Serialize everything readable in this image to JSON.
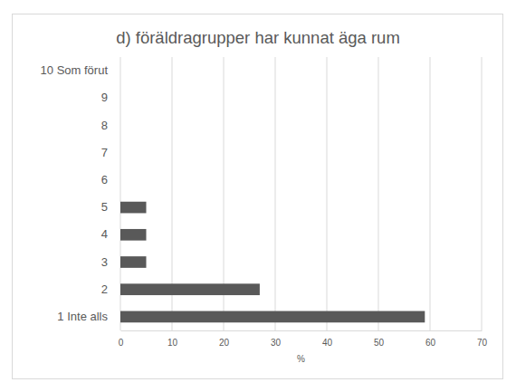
{
  "chart_data": {
    "type": "bar",
    "title": "d) föräldragrupper har kunnat äga rum",
    "orientation": "horizontal",
    "categories": [
      "1 Inte alls",
      "2",
      "3",
      "4",
      "5",
      "6",
      "7",
      "8",
      "9",
      "10 Som förut"
    ],
    "values": [
      59,
      27,
      5,
      5,
      5,
      0,
      0,
      0,
      0,
      0
    ],
    "color": "#595959",
    "xlabel": "%",
    "xlim": [
      0,
      70
    ],
    "xticks": [
      0,
      10,
      20,
      30,
      40,
      50,
      60,
      70
    ],
    "grid": true
  }
}
